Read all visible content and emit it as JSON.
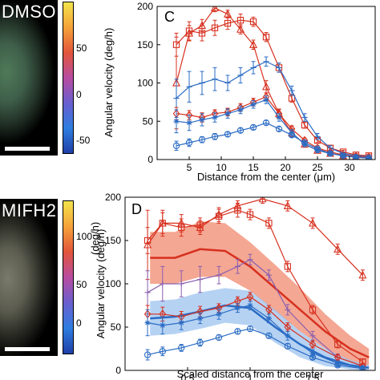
{
  "left_panels": [
    {
      "label": "DMSO",
      "colorbar_ticks": [
        "50",
        "0",
        "-50"
      ],
      "colorbar_unit": "(deg/h)"
    },
    {
      "label": "MIFH2",
      "colorbar_ticks": [
        "100",
        "50",
        "0"
      ],
      "colorbar_unit": "(deg/h)"
    }
  ],
  "colors": {
    "red": "#d7301f",
    "blue": "#2b6cc4",
    "red_band": "#f08a6f",
    "blue_band": "#9cc3ef",
    "purple": "#8a5fb0"
  },
  "chart_data": [
    {
      "panel": "C",
      "type": "line",
      "xlabel": "Distance from the center (μm)",
      "ylabel": "Angular velocity (deg/h)",
      "xlim": [
        0,
        34
      ],
      "ylim": [
        0,
        200
      ],
      "x_ticks": [
        "5",
        "10",
        "15",
        "20",
        "25",
        "30"
      ],
      "y_ticks": [
        "0",
        "50",
        "100",
        "150",
        "200"
      ],
      "series": [
        {
          "color": "red",
          "marker": "triangle",
          "x": [
            3,
            5,
            7,
            9,
            11,
            13,
            15,
            17,
            19,
            21,
            23,
            25,
            27,
            29,
            31,
            33
          ],
          "y": [
            100,
            165,
            175,
            198,
            190,
            170,
            150,
            95,
            60,
            35,
            20,
            12,
            8,
            5,
            4,
            3
          ],
          "err": [
            60,
            10,
            8,
            5,
            5,
            6,
            6,
            8,
            6,
            5,
            4,
            3,
            2,
            2,
            2,
            2
          ]
        },
        {
          "color": "red",
          "marker": "square",
          "x": [
            3,
            5,
            7,
            9,
            11,
            13,
            15,
            17,
            19,
            21,
            23,
            25,
            27,
            29,
            31,
            33
          ],
          "y": [
            150,
            168,
            165,
            172,
            178,
            182,
            180,
            160,
            120,
            80,
            45,
            25,
            15,
            10,
            6,
            5
          ],
          "err": [
            15,
            12,
            10,
            10,
            8,
            8,
            6,
            6,
            6,
            5,
            4,
            3,
            3,
            2,
            2,
            2
          ]
        },
        {
          "color": "blue",
          "marker": "cross",
          "x": [
            3,
            5,
            7,
            9,
            11,
            13,
            15,
            17,
            19,
            21,
            23,
            25,
            27,
            29,
            31,
            33
          ],
          "y": [
            80,
            95,
            100,
            105,
            100,
            110,
            120,
            128,
            120,
            90,
            55,
            30,
            15,
            8,
            5,
            4
          ],
          "err": [
            25,
            20,
            15,
            15,
            10,
            10,
            8,
            6,
            6,
            6,
            5,
            4,
            3,
            2,
            2,
            2
          ]
        },
        {
          "color": "red",
          "marker": "diamond",
          "x": [
            3,
            5,
            7,
            9,
            11,
            13,
            15,
            17,
            19,
            21,
            23,
            25,
            27,
            29,
            31,
            33
          ],
          "y": [
            60,
            58,
            55,
            60,
            62,
            68,
            75,
            82,
            60,
            40,
            25,
            15,
            10,
            6,
            4,
            3
          ],
          "err": [
            8,
            6,
            6,
            5,
            5,
            5,
            5,
            5,
            5,
            4,
            3,
            3,
            2,
            2,
            2,
            2
          ]
        },
        {
          "color": "blue",
          "marker": "star",
          "x": [
            3,
            5,
            7,
            9,
            11,
            13,
            15,
            17,
            19,
            21,
            23,
            25,
            27,
            29,
            31,
            33
          ],
          "y": [
            50,
            48,
            52,
            55,
            60,
            65,
            72,
            78,
            55,
            35,
            20,
            12,
            8,
            5,
            3,
            2
          ],
          "err": [
            15,
            10,
            8,
            6,
            6,
            5,
            5,
            5,
            5,
            4,
            3,
            3,
            2,
            2,
            2,
            2
          ]
        },
        {
          "color": "blue",
          "marker": "circle",
          "x": [
            3,
            5,
            7,
            9,
            11,
            13,
            15,
            17,
            19,
            21,
            23,
            25,
            27,
            29,
            31,
            33
          ],
          "y": [
            18,
            22,
            26,
            30,
            33,
            38,
            42,
            48,
            40,
            32,
            22,
            14,
            8,
            5,
            3,
            2
          ],
          "err": [
            6,
            5,
            4,
            4,
            3,
            3,
            3,
            3,
            3,
            3,
            2,
            2,
            2,
            1,
            1,
            1
          ]
        }
      ]
    },
    {
      "panel": "D",
      "type": "line",
      "xlabel": "Scaled distance from the center",
      "ylabel": "Angular velocity (deg/h)",
      "xlim": [
        0,
        2
      ],
      "ylim": [
        0,
        200
      ],
      "x_ticks": [
        "0.5",
        "1",
        "1.5"
      ],
      "y_ticks": [
        "0",
        "50",
        "100",
        "150",
        "200"
      ],
      "bands": [
        {
          "color": "red",
          "x": [
            0.2,
            0.4,
            0.6,
            0.8,
            1.0,
            1.2,
            1.4,
            1.6,
            1.8,
            1.95
          ],
          "mean": [
            130,
            130,
            140,
            138,
            120,
            95,
            70,
            45,
            25,
            15
          ],
          "lower": [
            100,
            100,
            108,
            108,
            92,
            68,
            45,
            25,
            10,
            5
          ],
          "upper": [
            160,
            160,
            172,
            170,
            148,
            122,
            95,
            65,
            40,
            25
          ]
        },
        {
          "color": "blue",
          "x": [
            0.2,
            0.4,
            0.6,
            0.8,
            1.0,
            1.2,
            1.4,
            1.6,
            1.8,
            1.95
          ],
          "mean": [
            60,
            62,
            68,
            75,
            72,
            50,
            30,
            15,
            6,
            3
          ],
          "lower": [
            40,
            42,
            48,
            55,
            52,
            32,
            15,
            5,
            1,
            0
          ],
          "upper": [
            80,
            82,
            90,
            95,
            92,
            70,
            45,
            25,
            12,
            6
          ]
        }
      ],
      "series": [
        {
          "color": "red",
          "marker": "triangle",
          "x": [
            0.18,
            0.3,
            0.45,
            0.6,
            0.75,
            0.9,
            1.1,
            1.3,
            1.5,
            1.7,
            1.9
          ],
          "y": [
            145,
            170,
            170,
            165,
            180,
            190,
            198,
            190,
            170,
            140,
            110
          ],
          "err": [
            40,
            15,
            10,
            8,
            8,
            6,
            5,
            6,
            6,
            6,
            6
          ]
        },
        {
          "color": "red",
          "marker": "square",
          "x": [
            0.18,
            0.3,
            0.45,
            0.6,
            0.75,
            0.9,
            1.0,
            1.15,
            1.3,
            1.5,
            1.7,
            1.9
          ],
          "y": [
            150,
            170,
            165,
            168,
            178,
            185,
            180,
            170,
            120,
            70,
            30,
            10
          ],
          "err": [
            15,
            12,
            10,
            8,
            8,
            8,
            6,
            6,
            6,
            5,
            4,
            3
          ]
        },
        {
          "color": "purple",
          "marker": "cross",
          "x": [
            0.18,
            0.3,
            0.45,
            0.6,
            0.75,
            0.9,
            1.0,
            1.15,
            1.3,
            1.5,
            1.7,
            1.9
          ],
          "y": [
            90,
            100,
            100,
            105,
            110,
            120,
            128,
            110,
            70,
            40,
            15,
            5
          ],
          "err": [
            25,
            20,
            15,
            15,
            10,
            8,
            6,
            6,
            6,
            5,
            4,
            3
          ]
        },
        {
          "color": "red",
          "marker": "diamond",
          "x": [
            0.18,
            0.3,
            0.45,
            0.6,
            0.75,
            0.9,
            1.0,
            1.15,
            1.3,
            1.5,
            1.7,
            1.9
          ],
          "y": [
            65,
            65,
            62,
            68,
            72,
            80,
            85,
            70,
            50,
            30,
            15,
            5
          ],
          "err": [
            10,
            8,
            6,
            6,
            5,
            5,
            5,
            5,
            5,
            4,
            3,
            3
          ]
        },
        {
          "color": "blue",
          "marker": "star",
          "x": [
            0.18,
            0.3,
            0.45,
            0.6,
            0.75,
            0.9,
            1.0,
            1.15,
            1.3,
            1.5,
            1.7,
            1.9
          ],
          "y": [
            55,
            52,
            55,
            60,
            65,
            72,
            75,
            60,
            40,
            20,
            8,
            3
          ],
          "err": [
            15,
            10,
            8,
            6,
            6,
            5,
            5,
            5,
            5,
            4,
            3,
            2
          ]
        },
        {
          "color": "blue",
          "marker": "circle",
          "x": [
            0.18,
            0.3,
            0.45,
            0.6,
            0.75,
            0.9,
            1.0,
            1.15,
            1.3,
            1.5,
            1.7,
            1.9
          ],
          "y": [
            18,
            22,
            26,
            32,
            38,
            45,
            48,
            40,
            28,
            15,
            6,
            2
          ],
          "err": [
            6,
            5,
            4,
            4,
            3,
            3,
            3,
            3,
            3,
            2,
            2,
            1
          ]
        }
      ]
    }
  ]
}
